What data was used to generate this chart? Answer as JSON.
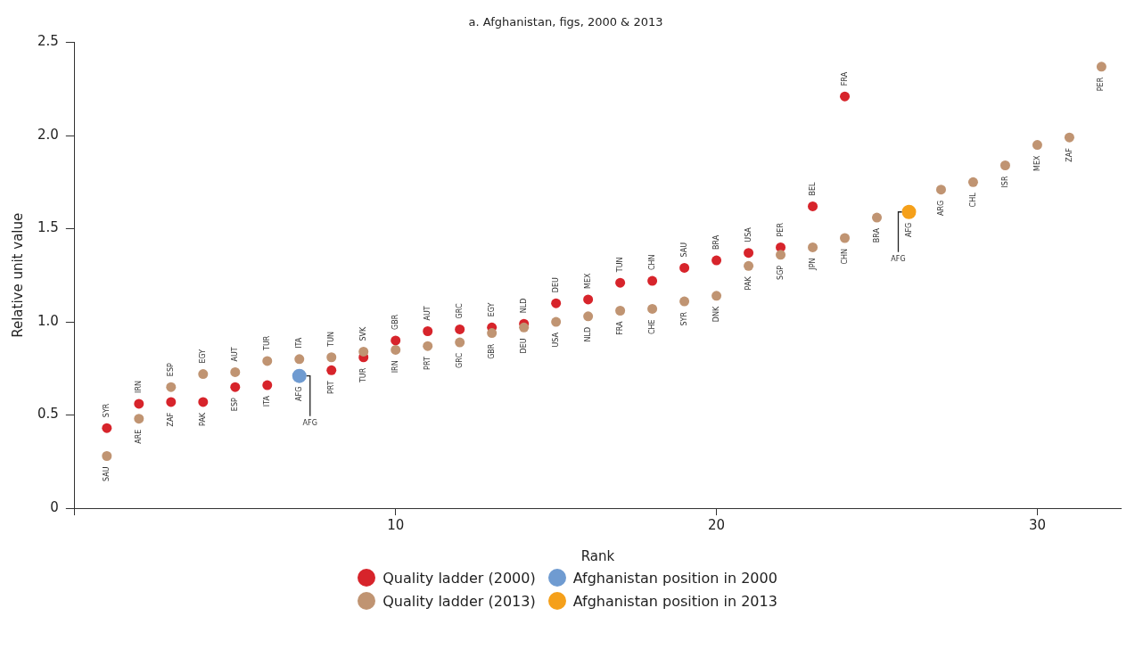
{
  "chart_data": {
    "type": "scatter",
    "title": "a. Afghanistan, figs, 2000 & 2013",
    "xlabel": "Rank",
    "ylabel": "Relative unit value",
    "xlim": [
      0,
      32.6
    ],
    "xticks": [
      {
        "value": 0,
        "label": null
      },
      10,
      20,
      30
    ],
    "ylim": [
      0,
      2.5
    ],
    "yticks": [
      0,
      0.5,
      {
        "value": 1,
        "label": "1.0"
      },
      1.5,
      {
        "value": 2,
        "label": "2.0"
      },
      2.5
    ],
    "grid": false,
    "legend": "bottom",
    "marker": "circle",
    "series": [
      {
        "name": "Quality ladder (2000)",
        "color": "#d7242b",
        "x": [
          1,
          2,
          3,
          4,
          5,
          6,
          8,
          9,
          10,
          11,
          12,
          13,
          14,
          15,
          16,
          17,
          18,
          19,
          20,
          21,
          22,
          23,
          24
        ],
        "values": [
          0.43,
          0.56,
          0.57,
          0.57,
          0.65,
          0.66,
          0.74,
          0.81,
          0.9,
          0.95,
          0.96,
          0.97,
          0.99,
          1.1,
          1.12,
          1.21,
          1.22,
          1.29,
          1.33,
          1.37,
          1.4,
          1.62,
          2.21
        ]
      },
      {
        "name": "Afghanistan position in 2000",
        "color": "#6f9bd1",
        "x": [
          7
        ],
        "values": [
          0.71
        ]
      },
      {
        "name": "Quality ladder (2013)",
        "color": "#c09472",
        "x": [
          1,
          2,
          3,
          4,
          5,
          6,
          7,
          8,
          9,
          10,
          11,
          12,
          13,
          14,
          15,
          16,
          17,
          18,
          19,
          20,
          21,
          22,
          23,
          24,
          25,
          27,
          28,
          29,
          30,
          31,
          32
        ],
        "values": [
          0.28,
          0.48,
          0.65,
          0.72,
          0.73,
          0.79,
          0.8,
          0.81,
          0.84,
          0.85,
          0.87,
          0.89,
          0.94,
          0.97,
          1.0,
          1.03,
          1.06,
          1.07,
          1.11,
          1.14,
          1.3,
          1.36,
          1.4,
          1.45,
          1.56,
          1.71,
          1.75,
          1.84,
          1.95,
          1.99,
          2.37
        ]
      },
      {
        "name": "Afghanistan  position in 2013",
        "color": "#f5a01a",
        "x": [
          26
        ],
        "values": [
          1.59
        ]
      }
    ],
    "annotations": [
      {
        "text": "SYR",
        "x": 1,
        "y": 0.43
      },
      {
        "text": "SAU",
        "x": 1,
        "y": 0.28
      },
      {
        "text": "IRN",
        "x": 2,
        "y": 0.56
      },
      {
        "text": "ARE",
        "x": 2,
        "y": 0.48
      },
      {
        "text": "ESP",
        "x": 3,
        "y": 0.65
      },
      {
        "text": "ZAF",
        "x": 3,
        "y": 0.57
      },
      {
        "text": "EGY",
        "x": 4,
        "y": 0.72
      },
      {
        "text": "PAK",
        "x": 4,
        "y": 0.57
      },
      {
        "text": "AUT",
        "x": 5,
        "y": 0.73
      },
      {
        "text": "ESP",
        "x": 5,
        "y": 0.65
      },
      {
        "text": "TUR",
        "x": 6,
        "y": 0.79
      },
      {
        "text": "ITA",
        "x": 6,
        "y": 0.66
      },
      {
        "text": "ITA",
        "x": 7,
        "y": 0.8
      },
      {
        "text": "AFG",
        "x": 7,
        "y": 0.71
      },
      {
        "text": "AFG",
        "x": 7,
        "y": 0.71
      },
      {
        "text": "TUN",
        "x": 8,
        "y": 0.81
      },
      {
        "text": "PRT",
        "x": 8,
        "y": 0.74
      },
      {
        "text": "SVK",
        "x": 9,
        "y": 0.84
      },
      {
        "text": "TUR",
        "x": 9,
        "y": 0.81
      },
      {
        "text": "GBR",
        "x": 10,
        "y": 0.9
      },
      {
        "text": "IRN",
        "x": 10,
        "y": 0.85
      },
      {
        "text": "AUT",
        "x": 11,
        "y": 0.95
      },
      {
        "text": "PRT",
        "x": 11,
        "y": 0.87
      },
      {
        "text": "GRC",
        "x": 12,
        "y": 0.96
      },
      {
        "text": "GRC",
        "x": 12,
        "y": 0.89
      },
      {
        "text": "EGY",
        "x": 13,
        "y": 0.97
      },
      {
        "text": "GBR",
        "x": 13,
        "y": 0.94
      },
      {
        "text": "NLD",
        "x": 14,
        "y": 0.99
      },
      {
        "text": "DEU",
        "x": 14,
        "y": 0.97
      },
      {
        "text": "DEU",
        "x": 15,
        "y": 1.1
      },
      {
        "text": "USA",
        "x": 15,
        "y": 1.0
      },
      {
        "text": "MEX",
        "x": 16,
        "y": 1.12
      },
      {
        "text": "NLD",
        "x": 16,
        "y": 1.03
      },
      {
        "text": "TUN",
        "x": 17,
        "y": 1.21
      },
      {
        "text": "FRA",
        "x": 17,
        "y": 1.06
      },
      {
        "text": "CHN",
        "x": 18,
        "y": 1.22
      },
      {
        "text": "CHE",
        "x": 18,
        "y": 1.07
      },
      {
        "text": "SAU",
        "x": 19,
        "y": 1.29
      },
      {
        "text": "SYR",
        "x": 19,
        "y": 1.11
      },
      {
        "text": "BRA",
        "x": 20,
        "y": 1.33
      },
      {
        "text": "DNK",
        "x": 20,
        "y": 1.14
      },
      {
        "text": "USA",
        "x": 21,
        "y": 1.37
      },
      {
        "text": "PAK",
        "x": 21,
        "y": 1.3
      },
      {
        "text": "PER",
        "x": 22,
        "y": 1.4
      },
      {
        "text": "SGP",
        "x": 22,
        "y": 1.36
      },
      {
        "text": "BEL",
        "x": 23,
        "y": 1.62
      },
      {
        "text": "JPN",
        "x": 23,
        "y": 1.4
      },
      {
        "text": "FRA",
        "x": 24,
        "y": 2.21
      },
      {
        "text": "CHN",
        "x": 24,
        "y": 1.45
      },
      {
        "text": "BRA",
        "x": 25,
        "y": 1.56
      },
      {
        "text": "AFG",
        "x": 26,
        "y": 1.59
      },
      {
        "text": "AFG",
        "x": 26,
        "y": 1.59
      },
      {
        "text": "ARG",
        "x": 27,
        "y": 1.71
      },
      {
        "text": "CHL",
        "x": 28,
        "y": 1.75
      },
      {
        "text": "ISR",
        "x": 29,
        "y": 1.84
      },
      {
        "text": "MEX",
        "x": 30,
        "y": 1.95
      },
      {
        "text": "ZAF",
        "x": 31,
        "y": 1.99
      },
      {
        "text": "PER",
        "x": 32,
        "y": 2.37
      }
    ]
  }
}
